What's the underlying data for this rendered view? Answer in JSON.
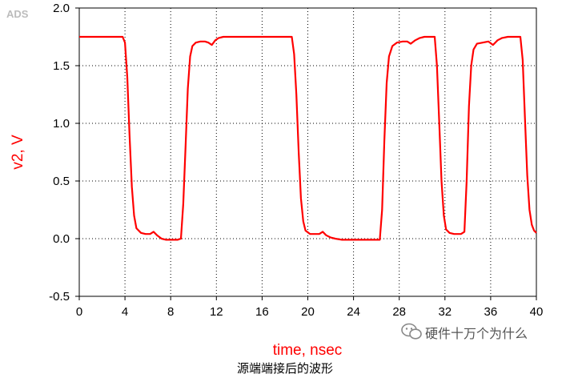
{
  "watermark_tag": "ADS",
  "watermark_text": "硬件十万个为什么",
  "caption": "源端端接后的波形",
  "colors": {
    "trace": "#ff0000",
    "grid": "#000000",
    "label": "#ff0000"
  },
  "chart_data": {
    "type": "line",
    "title": "",
    "xlabel": "time, nsec",
    "ylabel": "v2, V",
    "xlim": [
      0,
      40
    ],
    "ylim": [
      -0.5,
      2.0
    ],
    "xticks": [
      0,
      4,
      8,
      12,
      16,
      20,
      24,
      28,
      32,
      36,
      40
    ],
    "yticks": [
      -0.5,
      0.0,
      0.5,
      1.0,
      1.5,
      2.0
    ],
    "xtick_labels": [
      "0",
      "4",
      "8",
      "12",
      "16",
      "20",
      "24",
      "28",
      "32",
      "36",
      "40"
    ],
    "ytick_labels": [
      "-0.5",
      "0.0",
      "0.5",
      "1.0",
      "1.5",
      "2.0"
    ],
    "grid": true,
    "series": [
      {
        "color": "#ff0000",
        "x": [
          0,
          3.8,
          4.0,
          4.2,
          4.4,
          4.6,
          4.8,
          5.0,
          5.4,
          5.8,
          6.2,
          6.5,
          6.8,
          7.2,
          7.6,
          8.0,
          8.6,
          8.9,
          9.1,
          9.3,
          9.5,
          9.7,
          9.9,
          10.2,
          10.6,
          11.0,
          11.3,
          11.6,
          11.9,
          12.2,
          12.6,
          13.5,
          18.6,
          18.8,
          19.0,
          19.2,
          19.4,
          19.6,
          19.8,
          20.2,
          20.6,
          21.0,
          21.3,
          21.6,
          22.0,
          22.4,
          23.0,
          26.3,
          26.5,
          26.7,
          26.9,
          27.1,
          27.4,
          27.8,
          28.3,
          28.7,
          29.0,
          29.4,
          29.8,
          30.2,
          30.6,
          31.1,
          31.3,
          31.5,
          31.7,
          31.9,
          32.1,
          32.4,
          32.8,
          33.4,
          33.7,
          33.9,
          34.1,
          34.3,
          34.5,
          34.8,
          35.3,
          35.8,
          36.2,
          36.6,
          37.0,
          37.5,
          38.0,
          38.6,
          38.8,
          39.0,
          39.2,
          39.4,
          39.6,
          39.8,
          40.0
        ],
        "y": [
          1.75,
          1.75,
          1.7,
          1.4,
          0.9,
          0.45,
          0.2,
          0.09,
          0.05,
          0.04,
          0.04,
          0.06,
          0.03,
          0.0,
          -0.01,
          -0.01,
          -0.01,
          0.0,
          0.3,
          0.8,
          1.3,
          1.58,
          1.67,
          1.7,
          1.71,
          1.71,
          1.7,
          1.68,
          1.72,
          1.74,
          1.75,
          1.75,
          1.75,
          1.6,
          1.25,
          0.75,
          0.35,
          0.15,
          0.07,
          0.04,
          0.04,
          0.04,
          0.06,
          0.03,
          0.01,
          0.0,
          -0.01,
          -0.01,
          0.25,
          0.85,
          1.35,
          1.58,
          1.67,
          1.7,
          1.71,
          1.71,
          1.69,
          1.72,
          1.74,
          1.75,
          1.75,
          1.75,
          1.5,
          1.0,
          0.5,
          0.2,
          0.08,
          0.05,
          0.04,
          0.04,
          0.06,
          0.5,
          1.15,
          1.5,
          1.64,
          1.69,
          1.7,
          1.71,
          1.68,
          1.72,
          1.74,
          1.75,
          1.75,
          1.75,
          1.55,
          1.05,
          0.55,
          0.25,
          0.12,
          0.07,
          0.05
        ]
      }
    ]
  }
}
